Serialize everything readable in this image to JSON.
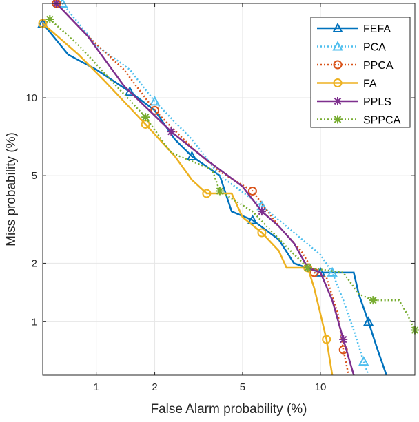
{
  "chart_data": {
    "type": "line",
    "title": "",
    "xlabel": "False Alarm probability (%)",
    "ylabel": "Miss probability (%)",
    "xscale": "probit (normal deviate)",
    "yscale": "probit (normal deviate)",
    "xlim": [
      0.5,
      20
    ],
    "ylim": [
      0.5,
      20
    ],
    "xticks": [
      1,
      2,
      5,
      10
    ],
    "yticks": [
      1,
      2,
      5,
      10
    ],
    "xtick_labels": [
      "1",
      "2",
      "5",
      "10"
    ],
    "ytick_labels": [
      "1",
      "2",
      "5",
      "10"
    ],
    "grid": true,
    "legend_position": "top-right",
    "series": [
      {
        "name": "FEFA",
        "color": "#0072BD",
        "style": "solid",
        "marker": "triangle",
        "points": [
          [
            0.5,
            17.5
          ],
          [
            0.7,
            14
          ],
          [
            1,
            12.5
          ],
          [
            1.5,
            10.5
          ],
          [
            2,
            9
          ],
          [
            2.5,
            7
          ],
          [
            3,
            6
          ],
          [
            4,
            5
          ],
          [
            4.5,
            3.5
          ],
          [
            5.5,
            3.2
          ],
          [
            7,
            2.6
          ],
          [
            8,
            2
          ],
          [
            10,
            1.8
          ],
          [
            13,
            1.8
          ],
          [
            13.5,
            1.4
          ],
          [
            14.5,
            1.0
          ],
          [
            15.5,
            0.7
          ],
          [
            16.5,
            0.5
          ]
        ]
      },
      {
        "name": "PCA",
        "color": "#4DBEEE",
        "style": "dotted",
        "marker": "triangle",
        "points": [
          [
            0.65,
            20
          ],
          [
            1,
            15
          ],
          [
            1.5,
            12.5
          ],
          [
            2,
            9.7
          ],
          [
            3,
            7
          ],
          [
            4,
            5
          ],
          [
            6,
            3.7
          ],
          [
            8,
            2.8
          ],
          [
            10,
            2.2
          ],
          [
            11,
            1.8
          ],
          [
            12,
            1.3
          ],
          [
            13,
            0.9
          ],
          [
            14,
            0.6
          ],
          [
            14.5,
            0.5
          ]
        ]
      },
      {
        "name": "PPCA",
        "color": "#D95319",
        "style": "dotted",
        "marker": "circle",
        "points": [
          [
            0.6,
            20
          ],
          [
            0.9,
            16
          ],
          [
            1.4,
            12.5
          ],
          [
            2,
            9
          ],
          [
            3,
            6.5
          ],
          [
            4,
            5.2
          ],
          [
            5.5,
            4.3
          ],
          [
            7,
            3
          ],
          [
            8.5,
            2.3
          ],
          [
            9.5,
            1.8
          ],
          [
            10.5,
            1.7
          ],
          [
            11.5,
            1.1
          ],
          [
            12,
            0.7
          ],
          [
            12.5,
            0.5
          ]
        ]
      },
      {
        "name": "FA",
        "color": "#EDB120",
        "style": "solid",
        "marker": "circle",
        "points": [
          [
            0.5,
            17.5
          ],
          [
            0.8,
            14
          ],
          [
            1.1,
            11.5
          ],
          [
            1.8,
            8
          ],
          [
            2.5,
            6
          ],
          [
            3,
            4.8
          ],
          [
            3.5,
            4.2
          ],
          [
            4.5,
            4.2
          ],
          [
            5,
            3.3
          ],
          [
            6,
            2.8
          ],
          [
            7,
            2.3
          ],
          [
            7.5,
            1.9
          ],
          [
            9,
            1.9
          ],
          [
            9.5,
            1.5
          ],
          [
            10,
            1.1
          ],
          [
            10.5,
            0.8
          ],
          [
            11,
            0.5
          ]
        ]
      },
      {
        "name": "PPLS",
        "color": "#7E2F8E",
        "style": "solid",
        "marker": "star",
        "points": [
          [
            0.6,
            20
          ],
          [
            0.9,
            16
          ],
          [
            1.4,
            11
          ],
          [
            2.4,
            7.5
          ],
          [
            3.5,
            5.8
          ],
          [
            5,
            4.5
          ],
          [
            6,
            3.5
          ],
          [
            7,
            3
          ],
          [
            8,
            2.5
          ],
          [
            9,
            1.9
          ],
          [
            10,
            1.8
          ],
          [
            11,
            1.3
          ],
          [
            12,
            0.8
          ],
          [
            13,
            0.5
          ]
        ]
      },
      {
        "name": "SPPCA",
        "color": "#77AC30",
        "style": "dotted",
        "marker": "star",
        "points": [
          [
            0.55,
            18
          ],
          [
            0.8,
            15
          ],
          [
            1.2,
            11.5
          ],
          [
            1.8,
            8.5
          ],
          [
            2.4,
            6.2
          ],
          [
            3.7,
            5.3
          ],
          [
            4,
            4.3
          ],
          [
            5.5,
            3.5
          ],
          [
            7.5,
            2.4
          ],
          [
            9,
            1.9
          ],
          [
            12,
            1.8
          ],
          [
            13.5,
            1.4
          ],
          [
            15,
            1.3
          ],
          [
            18,
            1.3
          ],
          [
            19,
            1.1
          ],
          [
            20,
            0.9
          ]
        ]
      }
    ]
  }
}
